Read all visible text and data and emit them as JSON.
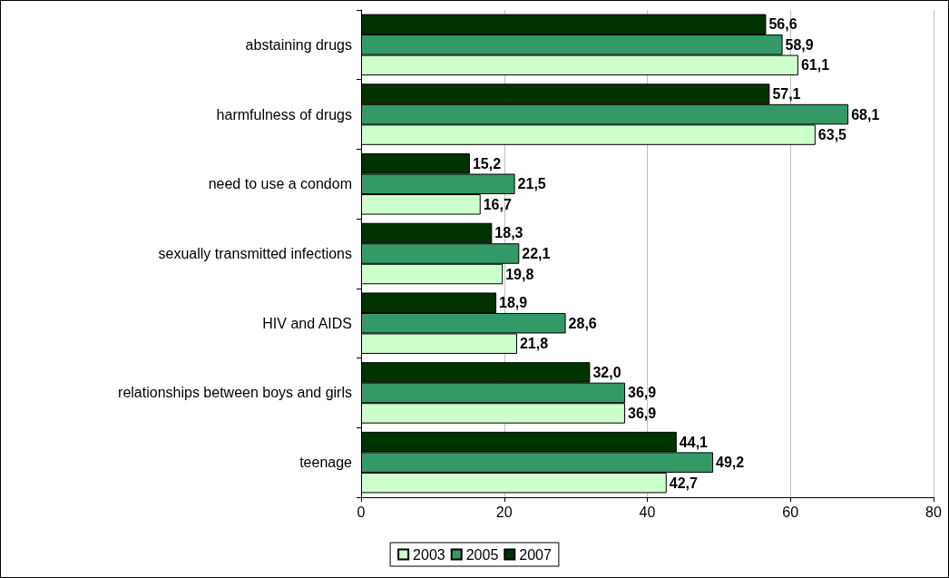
{
  "chart_data": {
    "type": "bar",
    "orientation": "horizontal",
    "categories": [
      "abstaining drugs",
      "harmfulness of drugs",
      "need to use a condom",
      "sexually transmitted infections",
      "HIV and AIDS",
      "relationships between boys and girls",
      "teenage"
    ],
    "series": [
      {
        "name": "2003",
        "color": "#ccffcc",
        "values": [
          61.1,
          63.5,
          16.7,
          19.8,
          21.8,
          36.9,
          42.7
        ],
        "value_labels": [
          "61,1",
          "63,5",
          "16,7",
          "19,8",
          "21,8",
          "36,9",
          "42,7"
        ]
      },
      {
        "name": "2005",
        "color": "#339966",
        "values": [
          58.9,
          68.1,
          21.5,
          22.1,
          28.6,
          36.9,
          49.2
        ],
        "value_labels": [
          "58,9",
          "68,1",
          "21,5",
          "22,1",
          "28,6",
          "36,9",
          "49,2"
        ]
      },
      {
        "name": "2007",
        "color": "#003300",
        "values": [
          56.6,
          57.1,
          15.2,
          18.3,
          18.9,
          32.0,
          44.1
        ],
        "value_labels": [
          "56,6",
          "57,1",
          "15,2",
          "18,3",
          "18,9",
          "32,0",
          "44,1"
        ]
      }
    ],
    "xlim": [
      0,
      80
    ],
    "xticks": [
      0,
      20,
      40,
      60,
      80
    ],
    "grid": "x",
    "legend": "bottom"
  }
}
